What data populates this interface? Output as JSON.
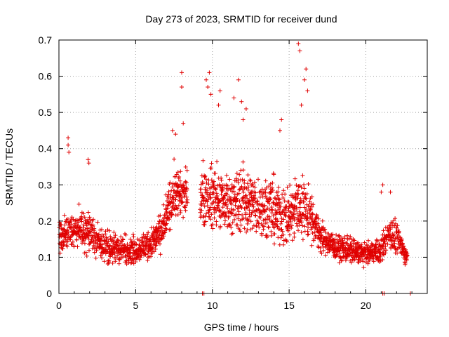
{
  "chart_data": {
    "type": "scatter",
    "title": "Day 273 of 2023, SRMTID for receiver dund",
    "xlabel": "GPS time / hours",
    "ylabel": "SRMTID / TECUs",
    "xlim": [
      0,
      24
    ],
    "ylim": [
      0,
      0.7
    ],
    "xticks": [
      0,
      5,
      10,
      15,
      20
    ],
    "xtick_labels": [
      "0",
      "5",
      "10",
      "15",
      "20"
    ],
    "yticks": [
      0,
      0.1,
      0.2,
      0.3,
      0.4,
      0.5,
      0.6,
      0.7
    ],
    "ytick_labels": [
      "0",
      "0.1",
      "0.2",
      "0.3",
      "0.4",
      "0.5",
      "0.6",
      "0.7"
    ],
    "grid": true,
    "marker": "+",
    "color": "#e00000",
    "envelope": [
      {
        "t": 0.0,
        "mean": 0.15,
        "spread": 0.06
      },
      {
        "t": 0.6,
        "mean": 0.17,
        "spread": 0.08
      },
      {
        "t": 1.0,
        "mean": 0.18,
        "spread": 0.07
      },
      {
        "t": 2.0,
        "mean": 0.17,
        "spread": 0.08
      },
      {
        "t": 3.0,
        "mean": 0.13,
        "spread": 0.06
      },
      {
        "t": 4.0,
        "mean": 0.12,
        "spread": 0.06
      },
      {
        "t": 5.0,
        "mean": 0.12,
        "spread": 0.05
      },
      {
        "t": 6.0,
        "mean": 0.14,
        "spread": 0.06
      },
      {
        "t": 6.8,
        "mean": 0.18,
        "spread": 0.07
      },
      {
        "t": 7.5,
        "mean": 0.28,
        "spread": 0.1
      },
      {
        "t": 8.1,
        "mean": 0.27,
        "spread": 0.1
      },
      {
        "t": 9.3,
        "mean": 0.27,
        "spread": 0.12
      },
      {
        "t": 10.0,
        "mean": 0.26,
        "spread": 0.12
      },
      {
        "t": 11.0,
        "mean": 0.25,
        "spread": 0.12
      },
      {
        "t": 12.0,
        "mean": 0.26,
        "spread": 0.13
      },
      {
        "t": 13.0,
        "mean": 0.24,
        "spread": 0.12
      },
      {
        "t": 14.0,
        "mean": 0.23,
        "spread": 0.12
      },
      {
        "t": 15.0,
        "mean": 0.2,
        "spread": 0.1
      },
      {
        "t": 15.6,
        "mean": 0.25,
        "spread": 0.14
      },
      {
        "t": 16.3,
        "mean": 0.22,
        "spread": 0.11
      },
      {
        "t": 17.0,
        "mean": 0.16,
        "spread": 0.06
      },
      {
        "t": 18.0,
        "mean": 0.13,
        "spread": 0.05
      },
      {
        "t": 19.0,
        "mean": 0.12,
        "spread": 0.05
      },
      {
        "t": 20.0,
        "mean": 0.11,
        "spread": 0.04
      },
      {
        "t": 21.0,
        "mean": 0.12,
        "spread": 0.05
      },
      {
        "t": 21.5,
        "mean": 0.17,
        "spread": 0.07
      },
      {
        "t": 22.0,
        "mean": 0.15,
        "spread": 0.06
      },
      {
        "t": 22.7,
        "mean": 0.1,
        "spread": 0.03
      }
    ],
    "gaps": [
      [
        8.4,
        9.2
      ],
      [
        22.8,
        24.0
      ]
    ],
    "sample_step_hours": 0.025,
    "outliers": [
      {
        "x": 0.6,
        "y": 0.43
      },
      {
        "x": 0.6,
        "y": 0.41
      },
      {
        "x": 0.65,
        "y": 0.39
      },
      {
        "x": 1.9,
        "y": 0.37
      },
      {
        "x": 1.95,
        "y": 0.36
      },
      {
        "x": 7.4,
        "y": 0.45
      },
      {
        "x": 7.6,
        "y": 0.44
      },
      {
        "x": 8.0,
        "y": 0.61
      },
      {
        "x": 8.0,
        "y": 0.57
      },
      {
        "x": 8.1,
        "y": 0.47
      },
      {
        "x": 9.6,
        "y": 0.59
      },
      {
        "x": 9.8,
        "y": 0.61
      },
      {
        "x": 9.7,
        "y": 0.57
      },
      {
        "x": 9.9,
        "y": 0.55
      },
      {
        "x": 10.5,
        "y": 0.56
      },
      {
        "x": 10.4,
        "y": 0.52
      },
      {
        "x": 11.7,
        "y": 0.59
      },
      {
        "x": 11.4,
        "y": 0.54
      },
      {
        "x": 11.9,
        "y": 0.53
      },
      {
        "x": 12.2,
        "y": 0.51
      },
      {
        "x": 12.0,
        "y": 0.48
      },
      {
        "x": 14.5,
        "y": 0.48
      },
      {
        "x": 14.4,
        "y": 0.45
      },
      {
        "x": 15.6,
        "y": 0.69
      },
      {
        "x": 15.7,
        "y": 0.67
      },
      {
        "x": 16.1,
        "y": 0.62
      },
      {
        "x": 16.0,
        "y": 0.59
      },
      {
        "x": 16.2,
        "y": 0.56
      },
      {
        "x": 15.8,
        "y": 0.52
      },
      {
        "x": 21.1,
        "y": 0.3
      },
      {
        "x": 21.0,
        "y": 0.28
      },
      {
        "x": 21.6,
        "y": 0.28
      }
    ],
    "axis_markers": [
      9.35,
      9.45,
      21.1,
      21.2,
      22.9
    ]
  }
}
